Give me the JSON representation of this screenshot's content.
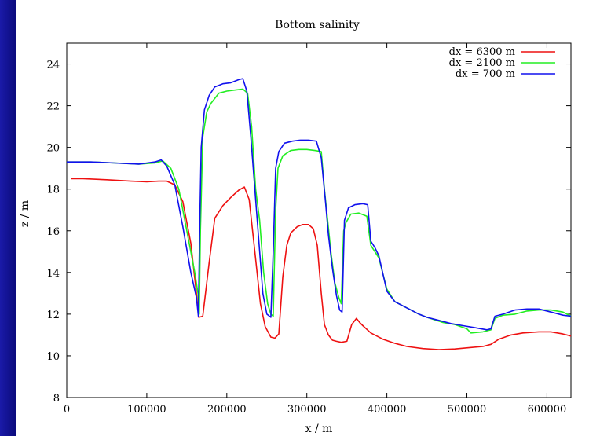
{
  "chart_data": {
    "type": "line",
    "title": "Bottom salinity",
    "xlabel": "x / m",
    "ylabel": "z / m",
    "xlim": [
      0,
      630000
    ],
    "ylim": [
      8,
      25
    ],
    "xticks": [
      0,
      100000,
      200000,
      300000,
      400000,
      500000,
      600000
    ],
    "yticks": [
      8,
      10,
      12,
      14,
      16,
      18,
      20,
      22,
      24
    ],
    "grid": false,
    "legend_position": "top-right",
    "background": "#ffffff",
    "series": [
      {
        "name": "dx = 6300 m",
        "color": "#ee1111",
        "x": [
          5000,
          20000,
          50000,
          80000,
          100000,
          115000,
          125000,
          135000,
          145000,
          155000,
          162000,
          165000,
          170000,
          178000,
          185000,
          195000,
          205000,
          215000,
          222000,
          228000,
          235000,
          242000,
          248000,
          255000,
          260000,
          265000,
          270000,
          275000,
          280000,
          288000,
          295000,
          302000,
          308000,
          313000,
          318000,
          322000,
          327000,
          332000,
          337000,
          343000,
          350000,
          356000,
          362000,
          366000,
          370000,
          380000,
          395000,
          410000,
          425000,
          445000,
          465000,
          485000,
          505000,
          520000,
          530000,
          540000,
          555000,
          570000,
          590000,
          605000,
          620000,
          630000
        ],
        "y": [
          18.5,
          18.5,
          18.45,
          18.38,
          18.35,
          18.38,
          18.38,
          18.2,
          17.4,
          15.4,
          13.0,
          11.85,
          11.9,
          14.5,
          16.6,
          17.2,
          17.6,
          17.95,
          18.1,
          17.5,
          15.0,
          12.5,
          11.4,
          10.9,
          10.85,
          11.05,
          13.8,
          15.3,
          15.9,
          16.2,
          16.3,
          16.3,
          16.1,
          15.3,
          13.0,
          11.5,
          11.0,
          10.75,
          10.7,
          10.65,
          10.7,
          11.5,
          11.8,
          11.6,
          11.45,
          11.1,
          10.8,
          10.6,
          10.45,
          10.35,
          10.3,
          10.33,
          10.4,
          10.45,
          10.55,
          10.8,
          11.0,
          11.1,
          11.15,
          11.15,
          11.05,
          10.95
        ]
      },
      {
        "name": "dx = 2100 m",
        "color": "#22ee22",
        "x": [
          0,
          30000,
          60000,
          90000,
          110000,
          120000,
          130000,
          140000,
          150000,
          160000,
          164000,
          165500,
          167000,
          170000,
          175000,
          180000,
          190000,
          200000,
          210000,
          220000,
          226000,
          231000,
          236000,
          241000,
          246000,
          251000,
          255000,
          258000,
          261000,
          264000,
          270000,
          280000,
          290000,
          300000,
          310000,
          318000,
          322000,
          326000,
          330000,
          335000,
          340000,
          343000,
          346000,
          349000,
          355000,
          365000,
          375000,
          380000,
          385000,
          390000,
          400000,
          410000,
          420000,
          430000,
          440000,
          450000,
          470000,
          485000,
          500000,
          505000,
          520000,
          530000,
          535000,
          545000,
          560000,
          575000,
          590000,
          605000,
          620000,
          630000
        ],
        "y": [
          19.3,
          19.3,
          19.25,
          19.2,
          19.25,
          19.35,
          19.0,
          18.0,
          16.0,
          14.0,
          13.0,
          12.0,
          16.0,
          20.5,
          21.7,
          22.1,
          22.6,
          22.7,
          22.75,
          22.8,
          22.6,
          21.0,
          18.0,
          16.5,
          14.0,
          12.5,
          12.0,
          11.9,
          17.0,
          19.0,
          19.6,
          19.85,
          19.9,
          19.9,
          19.85,
          19.8,
          18.0,
          16.5,
          15.0,
          13.5,
          12.8,
          12.5,
          16.0,
          16.4,
          16.8,
          16.85,
          16.7,
          15.3,
          15.0,
          14.7,
          13.2,
          12.6,
          12.4,
          12.2,
          12.0,
          11.85,
          11.6,
          11.5,
          11.3,
          11.1,
          11.15,
          11.25,
          11.8,
          11.95,
          12.0,
          12.15,
          12.2,
          12.2,
          12.1,
          11.9
        ]
      },
      {
        "name": "dx = 700 m",
        "color": "#1111ee",
        "x": [
          0,
          30000,
          60000,
          90000,
          110000,
          118000,
          125000,
          135000,
          145000,
          155000,
          162000,
          164500,
          166000,
          168000,
          172000,
          178000,
          185000,
          195000,
          205000,
          215000,
          220000,
          225000,
          230000,
          235000,
          240000,
          245000,
          250000,
          255000,
          258000,
          261000,
          265000,
          272000,
          282000,
          292000,
          302000,
          312000,
          318000,
          323000,
          327000,
          332000,
          337000,
          341000,
          344000,
          347000,
          352000,
          360000,
          370000,
          376000,
          380000,
          385000,
          390000,
          400000,
          410000,
          420000,
          430000,
          440000,
          450000,
          465000,
          480000,
          495000,
          510000,
          525000,
          530000,
          535000,
          545000,
          560000,
          575000,
          590000,
          605000,
          620000,
          630000
        ],
        "y": [
          19.3,
          19.3,
          19.25,
          19.2,
          19.3,
          19.4,
          19.1,
          18.2,
          16.2,
          14.0,
          12.8,
          11.9,
          16.0,
          20.0,
          21.8,
          22.5,
          22.9,
          23.05,
          23.1,
          23.25,
          23.3,
          22.7,
          20.5,
          18.0,
          15.5,
          13.0,
          12.0,
          11.85,
          15.0,
          19.0,
          19.8,
          20.2,
          20.3,
          20.35,
          20.35,
          20.3,
          19.5,
          17.5,
          15.8,
          14.2,
          12.9,
          12.2,
          12.1,
          16.5,
          17.1,
          17.25,
          17.3,
          17.25,
          15.5,
          15.2,
          14.8,
          13.1,
          12.6,
          12.4,
          12.2,
          12.0,
          11.85,
          11.7,
          11.55,
          11.45,
          11.35,
          11.25,
          11.3,
          11.9,
          12.0,
          12.2,
          12.25,
          12.25,
          12.1,
          11.95,
          11.9
        ]
      }
    ]
  }
}
